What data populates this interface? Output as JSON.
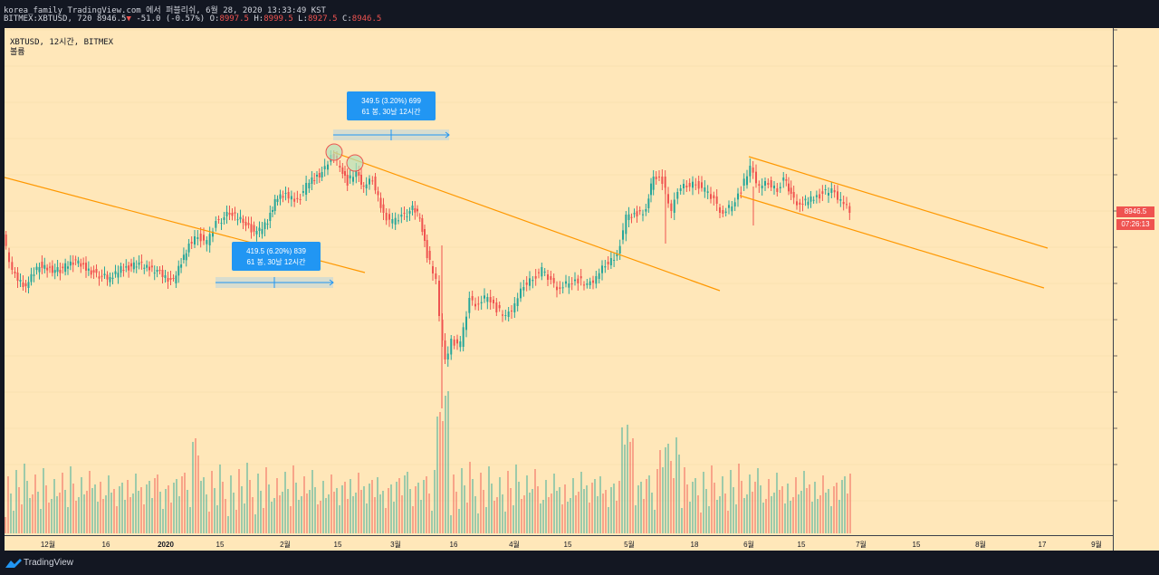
{
  "header": {
    "publish": "korea_family TradingView.com 에서 퍼블리쉬, 6월 28, 2020 13:33:49 KST",
    "symbol": "BITMEX:XBTUSD, 720",
    "price": "8946.5",
    "change": "-51.0 (-0.57%)",
    "o_label": "O:",
    "o_value": "8997.5",
    "h_label": "H:",
    "h_value": "8999.5",
    "l_label": "L:",
    "l_value": "8927.5",
    "c_label": "C:",
    "c_value": "8946.5"
  },
  "legend": {
    "symbol": "XBTUSD, 12시간, BITMEX",
    "volume": "볼륨"
  },
  "price_axis": {
    "last_price": "8946.5",
    "countdown": "07:26:13"
  },
  "footer": {
    "brand": "TradingView"
  },
  "colors": {
    "background": "#ffe7b9",
    "up": "#26a69a",
    "down": "#ef5350",
    "trendline": "#ff9800",
    "label_bg": "#2196f3"
  },
  "chart_data": {
    "type": "candlestick",
    "symbol": "XBTUSD",
    "interval": "12시간",
    "exchange": "BITMEX",
    "last_price": 8946.5,
    "time_ticks": [
      "12월",
      "16",
      "2020",
      "15",
      "2월",
      "15",
      "3월",
      "16",
      "4월",
      "15",
      "5월",
      "18",
      "6월",
      "15",
      "7월",
      "15",
      "8월",
      "17",
      "9월"
    ],
    "price_range": [
      3800,
      13800
    ],
    "measurements": [
      {
        "line1": "349.5 (3.20%) 699",
        "line2": "61 봉, 30날 12시간"
      },
      {
        "line1": "419.5 (6.20%) 839",
        "line2": "61 봉, 30날 12시간"
      }
    ],
    "trendlines": 4,
    "marked_points": 2,
    "volume_peak": "3월 중순"
  }
}
